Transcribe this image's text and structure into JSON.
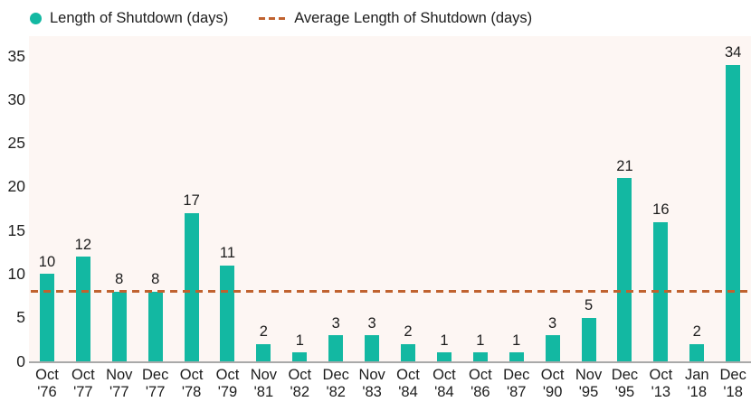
{
  "chart_data": {
    "type": "bar",
    "title": "",
    "xlabel": "",
    "ylabel": "",
    "categories": [
      "Oct '76",
      "Oct '77",
      "Nov '77",
      "Dec '77",
      "Oct '78",
      "Oct '79",
      "Nov '81",
      "Oct '82",
      "Dec '82",
      "Nov '83",
      "Oct '84",
      "Oct '84",
      "Oct '86",
      "Dec '87",
      "Oct '90",
      "Nov '95",
      "Dec '95",
      "Oct '13",
      "Jan '18",
      "Dec '18"
    ],
    "values": [
      10,
      12,
      8,
      8,
      17,
      11,
      2,
      1,
      3,
      3,
      2,
      1,
      1,
      1,
      3,
      5,
      21,
      16,
      2,
      34
    ],
    "average_line_value": 8.05,
    "ylim": [
      0,
      35
    ],
    "yticks": [
      0,
      5,
      10,
      15,
      20,
      25,
      30,
      35
    ],
    "grid": false,
    "legend_position": "top",
    "legend": {
      "bars_label": "Length of Shutdown (days)",
      "average_label": "Average Length of Shutdown (days)"
    },
    "colors": {
      "bar": "#13b8a2",
      "average_line": "#c0622f",
      "plot_background": "#fdf6f3",
      "axis_line": "#a9a9a9",
      "text": "#1c1c1c"
    }
  }
}
